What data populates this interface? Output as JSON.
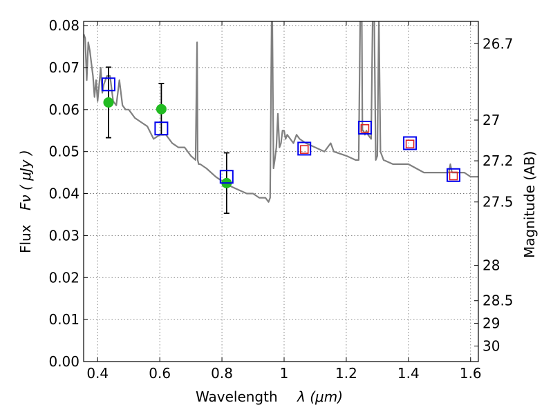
{
  "chart_data": {
    "type": "scatter",
    "xlabel": "Wavelength",
    "xlabel_symbol": "λ (μm)",
    "ylabel": "Flux",
    "ylabel_symbol": "Fν ( μJy )",
    "y2label": "Magnitude (AB)",
    "xlim": [
      0.355,
      1.625
    ],
    "ylim": [
      0.0,
      0.081
    ],
    "grid": true,
    "x_ticks": [
      {
        "value": 0.4,
        "label": "0.4"
      },
      {
        "value": 0.6,
        "label": "0.6"
      },
      {
        "value": 0.8,
        "label": "0.8"
      },
      {
        "value": 1.0,
        "label": "1"
      },
      {
        "value": 1.2,
        "label": "1.2"
      },
      {
        "value": 1.4,
        "label": "1.4"
      },
      {
        "value": 1.6,
        "label": "1.6"
      }
    ],
    "y_ticks": [
      {
        "value": 0.0,
        "label": "0.00"
      },
      {
        "value": 0.01,
        "label": "0.01"
      },
      {
        "value": 0.02,
        "label": "0.02"
      },
      {
        "value": 0.03,
        "label": "0.03"
      },
      {
        "value": 0.04,
        "label": "0.04"
      },
      {
        "value": 0.05,
        "label": "0.05"
      },
      {
        "value": 0.06,
        "label": "0.06"
      },
      {
        "value": 0.07,
        "label": "0.07"
      },
      {
        "value": 0.08,
        "label": "0.08"
      }
    ],
    "y2_ticks": [
      {
        "flux": 0.0757,
        "label": "26.7"
      },
      {
        "flux": 0.0575,
        "label": "27"
      },
      {
        "flux": 0.0478,
        "label": "27.2"
      },
      {
        "flux": 0.038,
        "label": "27.5"
      },
      {
        "flux": 0.0229,
        "label": "28"
      },
      {
        "flux": 0.0145,
        "label": "28.5"
      },
      {
        "flux": 0.0091,
        "label": "29"
      },
      {
        "flux": 0.0037,
        "label": "30"
      }
    ],
    "series": [
      {
        "kind": "line",
        "color": "#808080",
        "x": [
          0.355,
          0.36,
          0.365,
          0.37,
          0.375,
          0.38,
          0.385,
          0.39,
          0.395,
          0.4,
          0.405,
          0.41,
          0.415,
          0.42,
          0.43,
          0.44,
          0.45,
          0.46,
          0.47,
          0.48,
          0.49,
          0.5,
          0.52,
          0.54,
          0.56,
          0.58,
          0.6,
          0.62,
          0.64,
          0.66,
          0.68,
          0.7,
          0.715,
          0.72,
          0.722,
          0.725,
          0.73,
          0.75,
          0.78,
          0.8,
          0.82,
          0.85,
          0.88,
          0.9,
          0.92,
          0.94,
          0.95,
          0.955,
          0.96,
          0.962,
          0.966,
          0.97,
          0.975,
          0.98,
          0.985,
          0.99,
          0.995,
          1.0,
          1.005,
          1.01,
          1.02,
          1.03,
          1.04,
          1.05,
          1.07,
          1.1,
          1.13,
          1.15,
          1.155,
          1.16,
          1.2,
          1.23,
          1.24,
          1.245,
          1.25,
          1.252,
          1.255,
          1.26,
          1.265,
          1.27,
          1.28,
          1.285,
          1.29,
          1.295,
          1.3,
          1.305,
          1.31,
          1.32,
          1.35,
          1.4,
          1.45,
          1.5,
          1.52,
          1.53,
          1.535,
          1.54,
          1.55,
          1.58,
          1.6,
          1.625
        ],
        "y": [
          0.078,
          0.077,
          0.067,
          0.076,
          0.074,
          0.071,
          0.068,
          0.063,
          0.067,
          0.062,
          0.066,
          0.07,
          0.064,
          0.066,
          0.068,
          0.068,
          0.062,
          0.061,
          0.067,
          0.061,
          0.06,
          0.06,
          0.058,
          0.057,
          0.056,
          0.053,
          0.054,
          0.054,
          0.052,
          0.051,
          0.051,
          0.049,
          0.048,
          0.076,
          0.048,
          0.047,
          0.047,
          0.046,
          0.044,
          0.043,
          0.042,
          0.041,
          0.04,
          0.04,
          0.039,
          0.039,
          0.038,
          0.039,
          0.082,
          0.082,
          0.046,
          0.048,
          0.051,
          0.059,
          0.051,
          0.052,
          0.055,
          0.055,
          0.053,
          0.054,
          0.053,
          0.052,
          0.054,
          0.053,
          0.052,
          0.051,
          0.05,
          0.052,
          0.051,
          0.05,
          0.049,
          0.048,
          0.048,
          0.082,
          0.082,
          0.055,
          0.055,
          0.054,
          0.055,
          0.054,
          0.053,
          0.082,
          0.082,
          0.048,
          0.049,
          0.082,
          0.05,
          0.048,
          0.047,
          0.047,
          0.045,
          0.045,
          0.045,
          0.045,
          0.047,
          0.045,
          0.045,
          0.045,
          0.044,
          0.044
        ]
      },
      {
        "kind": "points",
        "name": "",
        "marker": "circle",
        "color": "#22bb22",
        "x": [
          0.435,
          0.605,
          0.815
        ],
        "y": [
          0.0617,
          0.0601,
          0.0425
        ],
        "yerr_low": [
          0.0084,
          0.0061,
          0.0072
        ],
        "yerr_high": [
          0.0084,
          0.0061,
          0.0072
        ],
        "errorbar_x": [
          0.435,
          0.605,
          0.815
        ],
        "errorbar_center": [
          0.0617,
          0.0601,
          0.0425
        ]
      },
      {
        "kind": "points",
        "marker": "open-square",
        "color": "#0000ee",
        "x": [
          0.435,
          0.605,
          0.815,
          1.065,
          1.26,
          1.405,
          1.545
        ],
        "y": [
          0.066,
          0.0555,
          0.044,
          0.0507,
          0.0557,
          0.052,
          0.0444
        ]
      },
      {
        "kind": "points",
        "marker": "small-open-square",
        "color": "#dd2222",
        "x": [
          1.065,
          1.26,
          1.405,
          1.545
        ],
        "y": [
          0.0505,
          0.0555,
          0.0518,
          0.0442
        ]
      }
    ]
  }
}
